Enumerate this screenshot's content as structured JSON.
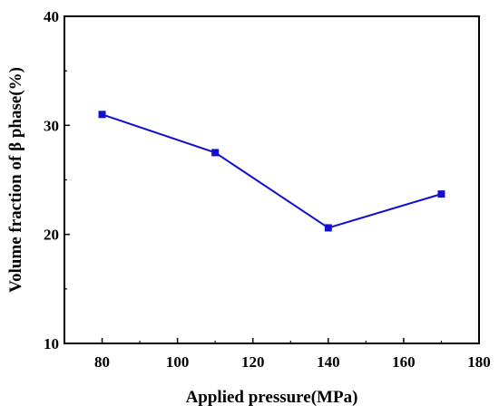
{
  "chart_data": {
    "type": "line",
    "title": "",
    "xlabel": "Applied pressure(MPa)",
    "ylabel": "Volume fraction of β phase(%)",
    "xlim": [
      70,
      180
    ],
    "ylim": [
      10,
      40
    ],
    "xticks": [
      80,
      100,
      120,
      140,
      160,
      180
    ],
    "yticks": [
      10,
      20,
      30,
      40
    ],
    "x": [
      80,
      110,
      140,
      170
    ],
    "series": [
      {
        "values": [
          31.0,
          27.5,
          20.6,
          23.7
        ],
        "color": "#1010d0",
        "marker": "square"
      }
    ],
    "grid": false,
    "legend": "none"
  }
}
